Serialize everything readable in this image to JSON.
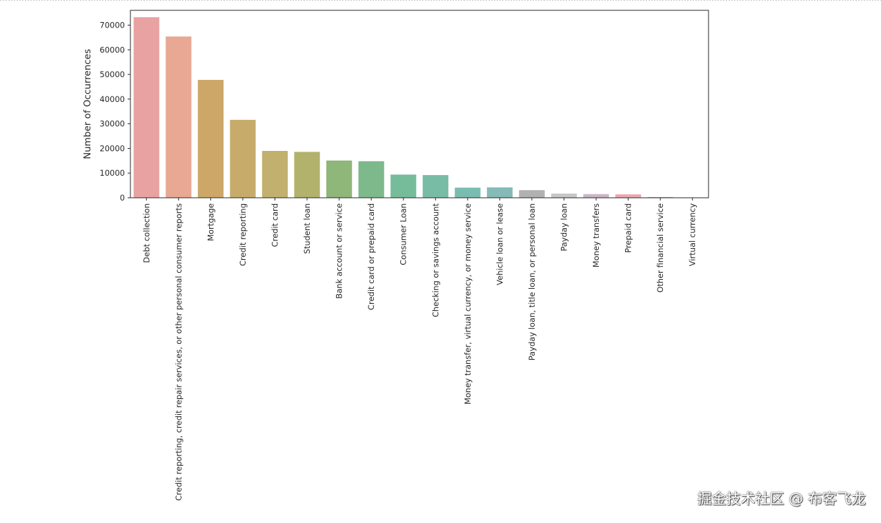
{
  "chart_data": {
    "type": "bar",
    "title": "",
    "xlabel": "",
    "ylabel": "Number of Occurrences",
    "ylim": [
      0,
      76000
    ],
    "yticks": [
      0,
      10000,
      20000,
      30000,
      40000,
      50000,
      60000,
      70000
    ],
    "ytick_labels": [
      "0",
      "10000",
      "20000",
      "30000",
      "40000",
      "50000",
      "60000",
      "70000"
    ],
    "categories": [
      "Debt collection",
      "Credit reporting, credit repair services, or other personal consumer reports",
      "Mortgage",
      "Credit reporting",
      "Credit card",
      "Student loan",
      "Bank account or service",
      "Credit card or prepaid card",
      "Consumer Loan",
      "Checking or savings account",
      "Money transfer, virtual currency, or money service",
      "Vehicle loan or lease",
      "Payday loan, title loan, or personal loan",
      "Payday loan",
      "Money transfers",
      "Prepaid card",
      "Other financial service",
      "Virtual currency"
    ],
    "values": [
      73200,
      65400,
      47800,
      31600,
      19000,
      18600,
      15100,
      14800,
      9400,
      9200,
      4100,
      4200,
      3100,
      1700,
      1500,
      1400,
      290,
      20
    ],
    "colors": [
      "#e9a2a2",
      "#e8a893",
      "#cda768",
      "#c6ab6a",
      "#c1b06e",
      "#b2b26d",
      "#8fb77a",
      "#7db98a",
      "#77bc9a",
      "#78bca5",
      "#7bbcb0",
      "#85bab7",
      "#b1b1b1",
      "#c7c7c7",
      "#cbb7c7",
      "#e9aab0",
      "#eba2a9",
      "#eca2a8"
    ],
    "grid": false,
    "legend": false
  },
  "watermark": "掘金技术社区 @ 布客飞龙"
}
